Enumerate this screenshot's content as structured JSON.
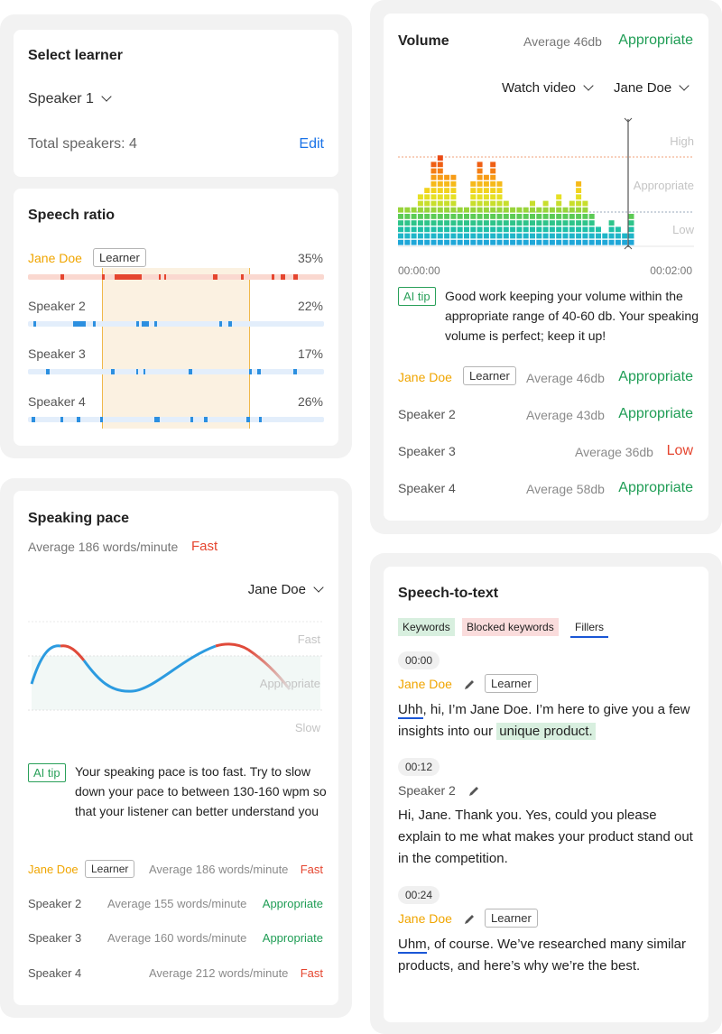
{
  "select_learner": {
    "title": "Select learner",
    "speaker": "Speaker 1",
    "total": "Total speakers: 4",
    "edit": "Edit"
  },
  "speech_ratio": {
    "title": "Speech ratio",
    "learner_tag": "Learner",
    "rows": [
      {
        "name": "Jane Doe",
        "pct": "35%"
      },
      {
        "name": "Speaker 2",
        "pct": "22%"
      },
      {
        "name": "Speaker 3",
        "pct": "17%"
      },
      {
        "name": "Speaker 4",
        "pct": "26%"
      }
    ]
  },
  "pace": {
    "title": "Speaking pace",
    "average": "Average 186 words/minute",
    "verdict": "Fast",
    "selector": "Jane Doe",
    "bands": {
      "fast": "Fast",
      "appropriate": "Appropriate",
      "slow": "Slow"
    },
    "tip_tag": "AI tip",
    "tip": "Your speaking pace is too fast. Try to slow down your pace to between 130-160 wpm so that your listener can better understand you",
    "learner_tag": "Learner",
    "rows": [
      {
        "name": "Jane Doe",
        "avg": "Average 186 words/minute",
        "status": "Fast"
      },
      {
        "name": "Speaker 2",
        "avg": "Average 155 words/minute",
        "status": "Appropriate"
      },
      {
        "name": "Speaker 3",
        "avg": "Average 160 words/minute",
        "status": "Appropriate"
      },
      {
        "name": "Speaker 4",
        "avg": "Average 212 words/minute",
        "status": "Fast"
      }
    ]
  },
  "volume": {
    "title": "Volume",
    "average": "Average 46db",
    "verdict": "Appropriate",
    "watch": "Watch video",
    "selector": "Jane Doe",
    "bands": {
      "high": "High",
      "appropriate": "Appropriate",
      "low": "Low"
    },
    "time_start": "00:00:00",
    "time_end": "00:02:00",
    "levels": [
      6,
      6,
      6,
      8,
      9,
      13,
      14,
      11,
      11,
      6,
      6,
      10,
      13,
      11,
      13,
      10,
      7,
      6,
      6,
      6,
      7,
      6,
      7,
      6,
      8,
      6,
      7,
      10,
      7,
      5,
      3,
      2,
      4,
      3,
      2,
      5
    ],
    "tip_tag": "AI tip",
    "tip": "Good work keeping your volume within the appropriate range of 40-60 db. Your speaking volume is perfect; keep it up!",
    "learner_tag": "Learner",
    "rows": [
      {
        "name": "Jane Doe",
        "avg": "Average 46db",
        "status": "Appropriate"
      },
      {
        "name": "Speaker 2",
        "avg": "Average 43db",
        "status": "Appropriate"
      },
      {
        "name": "Speaker 3",
        "avg": "Average 36db",
        "status": "Low"
      },
      {
        "name": "Speaker 4",
        "avg": "Average 58db",
        "status": "Appropriate"
      }
    ]
  },
  "stt": {
    "title": "Speech-to-text",
    "legend": {
      "keywords": "Keywords",
      "blocked": "Blocked keywords",
      "fillers": "Fillers"
    },
    "learner_tag": "Learner",
    "entries": [
      {
        "time": "00:00",
        "speaker": "Jane Doe",
        "filler": "Uhh",
        "text": ", hi, I’m Jane Doe. I’m here to give you a few insights into our",
        "keyword": "unique product."
      },
      {
        "time": "00:12",
        "speaker": "Speaker 2",
        "text": "Hi, Jane. Thank you. Yes, could you please explain to me what makes your product stand out in the competition."
      },
      {
        "time": "00:24",
        "speaker": "Jane Doe",
        "filler": "Uhm",
        "text": ", of course. We’ve researched many similar products, and here’s why we’re the best."
      }
    ]
  },
  "colors": {
    "learner": "#f0a500",
    "appropriate": "#1f9d55",
    "alert": "#e5452f",
    "link": "#1a73e8"
  }
}
